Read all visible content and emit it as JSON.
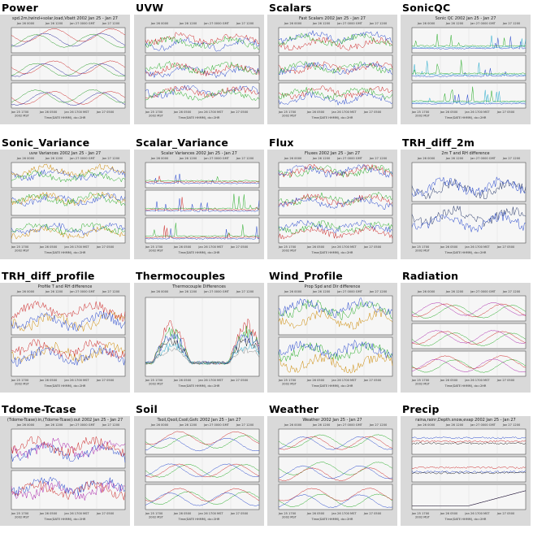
{
  "panels": [
    {
      "title": "Power",
      "plot_title": "spd.2m,twind+solar,load,Vbatt 2002 Jan 25 - Jan 27",
      "n": 3,
      "colors": [
        "#cc2222",
        "#222299",
        "#229922",
        "#aa22aa"
      ],
      "style": "smooth"
    },
    {
      "title": "UVW",
      "plot_title": "",
      "n": 3,
      "colors": [
        "#2244cc",
        "#cc2222",
        "#22aa22",
        "#aa22aa"
      ],
      "style": "noisy"
    },
    {
      "title": "Scalars",
      "plot_title": "Fast Scalars 2002 Jan 25 - Jan 27",
      "n": 3,
      "colors": [
        "#cc2222",
        "#2244cc",
        "#22aa22",
        "#cc8800"
      ],
      "style": "noisy"
    },
    {
      "title": "SonicQC",
      "plot_title": "Sonic QC 2002 Jan 25 - Jan 27",
      "n": 3,
      "colors": [
        "#2244cc",
        "#22aacc",
        "#22aa22",
        "#cc2222"
      ],
      "style": "spikes"
    },
    {
      "title": "Sonic_Variance",
      "plot_title": "uvw Variances 2002 Jan 25 - Jan 27",
      "n": 3,
      "colors": [
        "#2244cc",
        "#cc8800",
        "#22aa22",
        "#aa22aa"
      ],
      "style": "noisy"
    },
    {
      "title": "Scalar_Variance",
      "plot_title": "Scalar Variances 2002 Jan 25 - Jan 27",
      "n": 3,
      "colors": [
        "#2244cc",
        "#cc2222",
        "#22aa22",
        "#cc8800"
      ],
      "style": "spikes"
    },
    {
      "title": "Flux",
      "plot_title": "Fluxes 2002 Jan 25 - Jan 27",
      "n": 3,
      "colors": [
        "#22aa22",
        "#cc2222",
        "#2244cc",
        "#cc8800"
      ],
      "style": "noisy"
    },
    {
      "title": "TRH_diff_2m",
      "plot_title": "2m T and RH difference",
      "n": 2,
      "colors": [
        "#223366",
        "#2244cc"
      ],
      "style": "noisy"
    },
    {
      "title": "TRH_diff_profile",
      "plot_title": "Profile T and RH difference",
      "n": 2,
      "colors": [
        "#cc8800",
        "#2244cc",
        "#cc2222",
        "#22aa22"
      ],
      "style": "noisy"
    },
    {
      "title": "Thermocouples",
      "plot_title": "Thermocouple Differences",
      "n": 1,
      "colors": [
        "#cc2222",
        "#22aa22",
        "#2244cc",
        "#222222"
      ],
      "style": "peaks"
    },
    {
      "title": "Wind_Profile",
      "plot_title": "Prop Spd and Dir difference",
      "n": 2,
      "colors": [
        "#cc8800",
        "#22aa22",
        "#2244cc",
        "#cc2222"
      ],
      "style": "noisy"
    },
    {
      "title": "Radiation",
      "plot_title": "",
      "n": 3,
      "colors": [
        "#22aa22",
        "#cc2222",
        "#aa22aa",
        "#aaaa22"
      ],
      "style": "smooth"
    },
    {
      "title": "Tdome-Tcase",
      "plot_title": "(Tdome-Tcase):in,(Tdome-Tcase):out 2002 Jan 25 - Jan 27",
      "n": 2,
      "colors": [
        "#aa22aa",
        "#2244cc",
        "#cc2222",
        "#22aa22"
      ],
      "style": "noisy"
    },
    {
      "title": "Soil",
      "plot_title": "Tsoil,Qsoil,Csoil,Gsfc 2002 Jan 25 - Jan 27",
      "n": 3,
      "colors": [
        "#22aa22",
        "#cc2222",
        "#2244cc",
        "#aa22aa"
      ],
      "style": "smooth"
    },
    {
      "title": "Weather",
      "plot_title": "Weather 2002 Jan 25 - Jan 27",
      "n": 3,
      "colors": [
        "#22aa22",
        "#cc2222",
        "#2244cc",
        "#aa22aa"
      ],
      "style": "smooth"
    },
    {
      "title": "Precip",
      "plot_title": "raina,rainr,Depth.snow,evap 2002 Jan 25 - Jan 27",
      "n": 3,
      "colors": [
        "#cc2222",
        "#2244cc",
        "#222222",
        "#22aa22"
      ],
      "style": "precip"
    }
  ],
  "top_axis_labels": [
    "Jan 26 0000",
    "Jan 26 1200",
    "Jan 27 0000 GMT",
    "Jan 27 1200"
  ],
  "bottom_axis_labels": [
    "Jan 25 1700",
    "Jan 26 0500",
    "Jan 26 1700 MST",
    "Jan 27 0500"
  ],
  "year_label": "2002 MST",
  "time_label": "Time(DATE HHMM), dx=2HR",
  "colors": {
    "frame_bg": "#d9d9d9",
    "plot_bg": "#f6f6f6"
  }
}
